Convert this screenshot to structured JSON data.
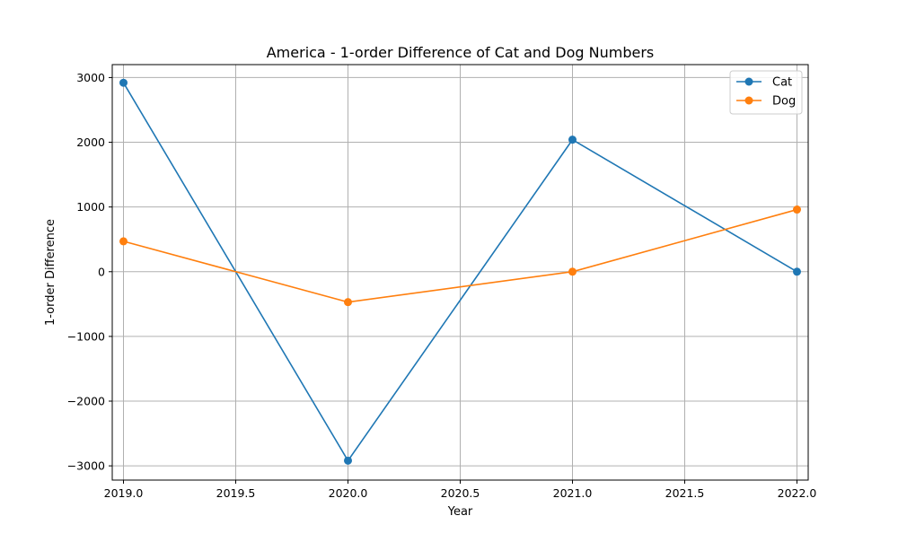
{
  "chart_data": {
    "type": "line",
    "title": "America - 1-order Difference of Cat and Dog Numbers",
    "xlabel": "Year",
    "ylabel": "1-order Difference",
    "x": [
      2019,
      2020,
      2021,
      2022
    ],
    "series": [
      {
        "name": "Cat",
        "color": "#1f77b4",
        "values": [
          2920,
          -2920,
          2040,
          0
        ]
      },
      {
        "name": "Dog",
        "color": "#ff7f0e",
        "values": [
          470,
          -470,
          0,
          960
        ]
      }
    ],
    "xlim": [
      2018.95,
      2022.05
    ],
    "ylim": [
      -3220,
      3200
    ],
    "x_ticks": [
      2019.0,
      2019.5,
      2020.0,
      2020.5,
      2021.0,
      2021.5,
      2022.0
    ],
    "x_tick_labels": [
      "2019.0",
      "2019.5",
      "2020.0",
      "2020.5",
      "2021.0",
      "2021.5",
      "2022.0"
    ],
    "y_ticks": [
      3000,
      2000,
      1000,
      0,
      -1000,
      -2000,
      -3000
    ],
    "y_tick_labels": [
      "3000",
      "2000",
      "1000",
      "0",
      "−1000",
      "−2000",
      "−3000"
    ],
    "grid": true,
    "legend_position": "top-right",
    "marker": "circle"
  }
}
